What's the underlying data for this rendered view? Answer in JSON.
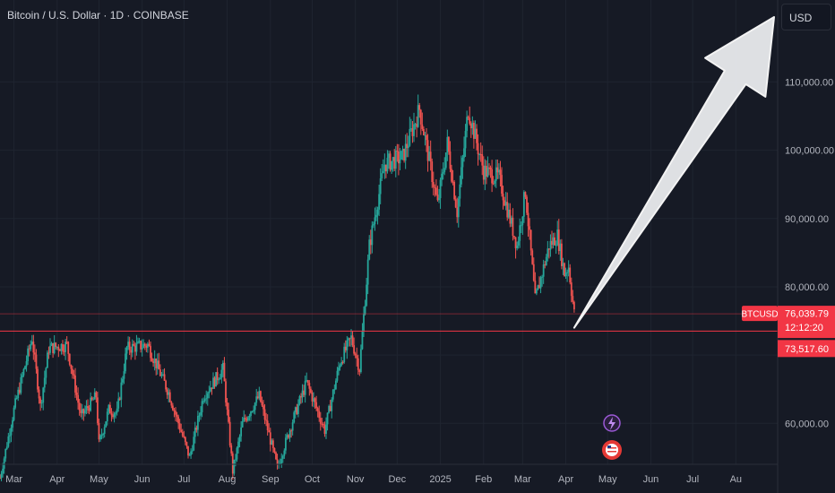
{
  "header": {
    "symbol_title": "Bitcoin / U.S. Dollar · 1D · COINBASE"
  },
  "currency_button": {
    "label": "USD"
  },
  "colors": {
    "background": "#161a25",
    "up": "#26a69a",
    "down": "#ef5350",
    "grid": "#1f2430",
    "axis_text": "#b2b5be",
    "line": "#f23645",
    "arrow_fill": "#e9ebee",
    "arrow_stroke": "#ffffff"
  },
  "price_labels": {
    "symbol": "BTCUSD",
    "last_price": "76,039.79",
    "countdown": "12:12:20",
    "level_price": "73,517.60"
  },
  "chart_data": {
    "type": "candlestick",
    "title": "Bitcoin / U.S. Dollar · 1D · COINBASE",
    "y_axis": {
      "ticks": [
        60000,
        70000,
        80000,
        90000,
        100000,
        110000
      ],
      "tick_labels": [
        "60,000.00",
        "",
        "80,000.00",
        "90,000.00",
        "100,000.00",
        "110,000.00"
      ],
      "range": [
        54000,
        122000
      ]
    },
    "x_axis": {
      "labels": [
        "Mar",
        "Apr",
        "May",
        "Jun",
        "Jul",
        "Aug",
        "Sep",
        "Oct",
        "Nov",
        "Dec",
        "2025",
        "Feb",
        "Mar",
        "Apr",
        "May",
        "Jun",
        "Jul",
        "Au"
      ],
      "range": [
        "2024-02-20",
        "2025-08-31"
      ]
    },
    "price_path": [
      [
        "2024-02-20",
        52000
      ],
      [
        "2024-03-01",
        62000
      ],
      [
        "2024-03-14",
        72500
      ],
      [
        "2024-03-20",
        62500
      ],
      [
        "2024-03-26",
        71000
      ],
      [
        "2024-04-08",
        71500
      ],
      [
        "2024-04-18",
        61000
      ],
      [
        "2024-04-29",
        64000
      ],
      [
        "2024-05-01",
        57000
      ],
      [
        "2024-05-08",
        62000
      ],
      [
        "2024-05-14",
        61500
      ],
      [
        "2024-05-21",
        71000
      ],
      [
        "2024-06-05",
        71500
      ],
      [
        "2024-06-20",
        64500
      ],
      [
        "2024-07-05",
        55000
      ],
      [
        "2024-07-15",
        64000
      ],
      [
        "2024-07-29",
        68000
      ],
      [
        "2024-08-05",
        53000
      ],
      [
        "2024-08-12",
        60000
      ],
      [
        "2024-08-24",
        64000
      ],
      [
        "2024-09-06",
        53500
      ],
      [
        "2024-09-18",
        61000
      ],
      [
        "2024-09-27",
        66000
      ],
      [
        "2024-10-10",
        59000
      ],
      [
        "2024-10-21",
        69000
      ],
      [
        "2024-10-29",
        72500
      ],
      [
        "2024-11-04",
        68000
      ],
      [
        "2024-11-11",
        86000
      ],
      [
        "2024-11-22",
        98000
      ],
      [
        "2024-12-05",
        99000
      ],
      [
        "2024-12-17",
        106000
      ],
      [
        "2024-12-30",
        92000
      ],
      [
        "2025-01-06",
        101000
      ],
      [
        "2025-01-13",
        91000
      ],
      [
        "2025-01-21",
        106000
      ],
      [
        "2025-02-01",
        97000
      ],
      [
        "2025-02-12",
        96000
      ],
      [
        "2025-02-25",
        86000
      ],
      [
        "2025-03-03",
        94000
      ],
      [
        "2025-03-10",
        78000
      ],
      [
        "2025-03-20",
        86000
      ],
      [
        "2025-03-26",
        87500
      ],
      [
        "2025-03-31",
        82000
      ],
      [
        "2025-04-03",
        83000
      ],
      [
        "2025-04-07",
        76039.79
      ]
    ],
    "horizontal_levels": [
      76039.79,
      73517.6
    ],
    "annotation": {
      "type": "arrow",
      "from": [
        "2025-04-07",
        74000
      ],
      "to": [
        "2025-08-31",
        119500
      ]
    }
  }
}
